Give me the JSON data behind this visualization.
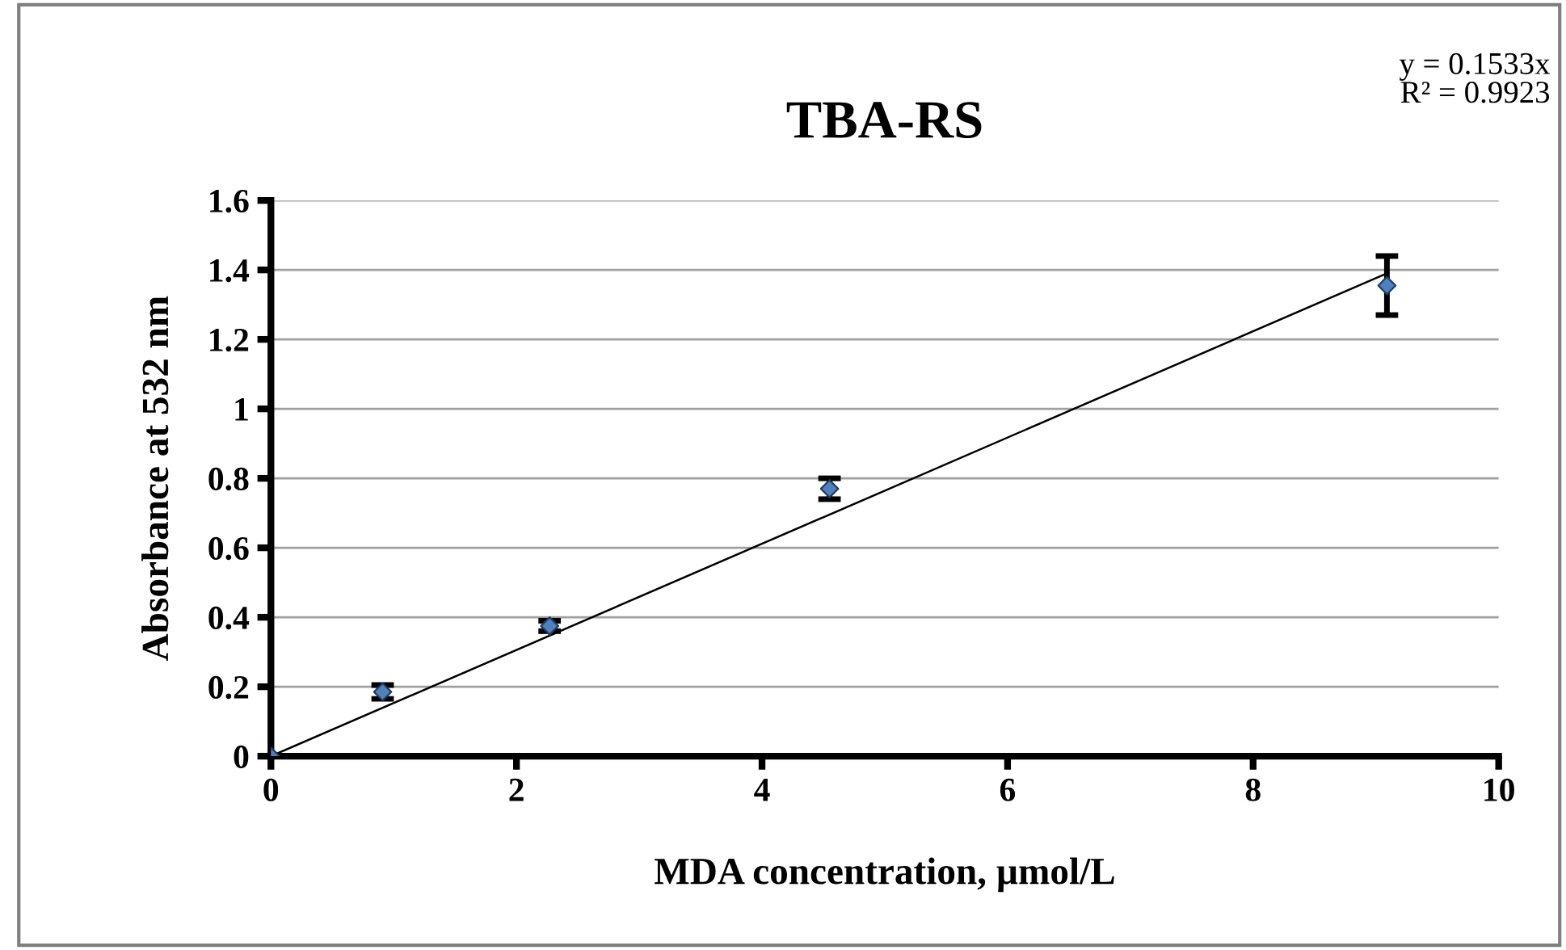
{
  "chart_data": {
    "type": "scatter",
    "title": "TBA-RS",
    "xlabel": "MDA concentration, µmol/L",
    "ylabel": "Absorbance at 532 nm",
    "x": [
      0,
      0.91,
      2.27,
      4.55,
      9.09
    ],
    "series": [
      {
        "color": "#4f81bd",
        "values": [
          0,
          0.185,
          0.375,
          0.77,
          1.355
        ],
        "errors": [
          null,
          0.02,
          0.015,
          0.03,
          0.085
        ],
        "marker": "diamond"
      },
      {
        "type": "line",
        "color": "#000000",
        "x": [
          0,
          9.09
        ],
        "values": [
          0,
          1.39
        ],
        "marker": "none",
        "line_style": "solid"
      }
    ],
    "annotations": [
      "y = 0.1533x",
      "R² = 0.9923"
    ],
    "xlim": [
      0,
      10
    ],
    "xticks": [
      0,
      2,
      4,
      6,
      8,
      10
    ],
    "ylim": [
      0,
      1.6
    ],
    "yticks": [
      0,
      0.2,
      0.4,
      0.6,
      0.8,
      1,
      1.2,
      1.4,
      1.6
    ],
    "grid": "y",
    "legend": false
  }
}
